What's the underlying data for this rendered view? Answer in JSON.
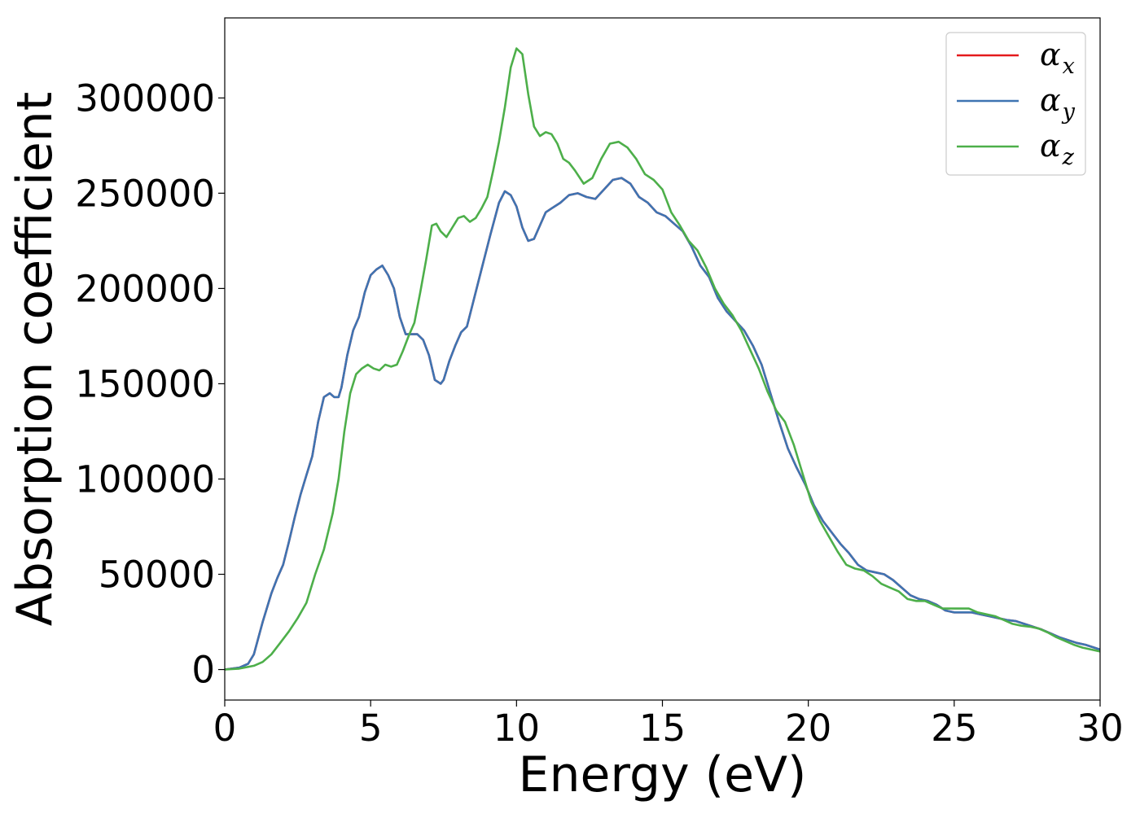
{
  "chart_data": {
    "type": "line",
    "title": "",
    "xlabel": "Energy (eV)",
    "ylabel": "Absorption coefficient",
    "xlim": [
      0,
      30
    ],
    "ylim": [
      -16000,
      342000
    ],
    "xticks": [
      0,
      5,
      10,
      15,
      20,
      25,
      30
    ],
    "yticks": [
      0,
      50000,
      100000,
      150000,
      200000,
      250000,
      300000
    ],
    "grid": false,
    "legend_position": "top-right",
    "series": [
      {
        "name": "x",
        "color": "#e41a1c",
        "x": [
          0,
          0.5,
          0.8,
          1.0,
          1.3,
          1.6,
          1.8,
          2.0,
          2.2,
          2.4,
          2.6,
          2.8,
          3.0,
          3.2,
          3.4,
          3.6,
          3.75,
          3.9,
          4.0,
          4.2,
          4.4,
          4.6,
          4.8,
          5.0,
          5.2,
          5.4,
          5.6,
          5.8,
          6.0,
          6.2,
          6.4,
          6.6,
          6.8,
          7.0,
          7.2,
          7.4,
          7.5,
          7.7,
          7.9,
          8.1,
          8.3,
          8.5,
          8.8,
          9.1,
          9.4,
          9.6,
          9.8,
          10.0,
          10.2,
          10.4,
          10.6,
          10.8,
          11.0,
          11.2,
          11.5,
          11.8,
          12.1,
          12.4,
          12.7,
          13.0,
          13.3,
          13.6,
          13.9,
          14.2,
          14.5,
          14.8,
          15.1,
          15.4,
          15.7,
          16.0,
          16.3,
          16.6,
          16.9,
          17.2,
          17.5,
          17.8,
          18.1,
          18.4,
          18.7,
          19.0,
          19.3,
          19.6,
          19.9,
          20.2,
          20.5,
          20.8,
          21.1,
          21.4,
          21.7,
          22.0,
          22.3,
          22.6,
          22.9,
          23.2,
          23.5,
          23.8,
          24.1,
          24.4,
          24.7,
          25.0,
          25.3,
          25.6,
          25.9,
          26.2,
          26.5,
          26.8,
          27.1,
          27.4,
          27.7,
          28.0,
          28.3,
          28.6,
          28.9,
          29.2,
          29.5,
          29.8,
          30.0
        ],
        "y": [
          0,
          1000,
          3000,
          8000,
          25000,
          40000,
          48000,
          55000,
          67000,
          80000,
          92000,
          102000,
          112000,
          130000,
          143000,
          145000,
          143000,
          143000,
          148000,
          165000,
          178000,
          185000,
          198000,
          207000,
          210000,
          212000,
          207000,
          200000,
          185000,
          176000,
          176000,
          176000,
          173000,
          165000,
          152000,
          150000,
          152000,
          162000,
          170000,
          177000,
          180000,
          192000,
          210000,
          228000,
          245000,
          251000,
          249000,
          243000,
          232000,
          225000,
          226000,
          233000,
          240000,
          242000,
          245000,
          249000,
          250000,
          248000,
          247000,
          252000,
          257000,
          258000,
          255000,
          248000,
          245000,
          240000,
          238000,
          234000,
          230000,
          222000,
          212000,
          206000,
          195000,
          188000,
          183000,
          178000,
          170000,
          160000,
          145000,
          130000,
          116000,
          106000,
          97000,
          86000,
          78000,
          72000,
          66000,
          61000,
          55000,
          52000,
          51000,
          50000,
          47000,
          43000,
          39000,
          37000,
          36000,
          34000,
          31000,
          30000,
          30000,
          30000,
          29000,
          28000,
          27000,
          26000,
          25500,
          24000,
          22500,
          21000,
          19000,
          17000,
          15500,
          14000,
          13000,
          11500,
          10500
        ]
      },
      {
        "name": "y",
        "color": "#3e74b2",
        "x": [
          0,
          0.5,
          0.8,
          1.0,
          1.3,
          1.6,
          1.8,
          2.0,
          2.2,
          2.4,
          2.6,
          2.8,
          3.0,
          3.2,
          3.4,
          3.6,
          3.75,
          3.9,
          4.0,
          4.2,
          4.4,
          4.6,
          4.8,
          5.0,
          5.2,
          5.4,
          5.6,
          5.8,
          6.0,
          6.2,
          6.4,
          6.6,
          6.8,
          7.0,
          7.2,
          7.4,
          7.5,
          7.7,
          7.9,
          8.1,
          8.3,
          8.5,
          8.8,
          9.1,
          9.4,
          9.6,
          9.8,
          10.0,
          10.2,
          10.4,
          10.6,
          10.8,
          11.0,
          11.2,
          11.5,
          11.8,
          12.1,
          12.4,
          12.7,
          13.0,
          13.3,
          13.6,
          13.9,
          14.2,
          14.5,
          14.8,
          15.1,
          15.4,
          15.7,
          16.0,
          16.3,
          16.6,
          16.9,
          17.2,
          17.5,
          17.8,
          18.1,
          18.4,
          18.7,
          19.0,
          19.3,
          19.6,
          19.9,
          20.2,
          20.5,
          20.8,
          21.1,
          21.4,
          21.7,
          22.0,
          22.3,
          22.6,
          22.9,
          23.2,
          23.5,
          23.8,
          24.1,
          24.4,
          24.7,
          25.0,
          25.3,
          25.6,
          25.9,
          26.2,
          26.5,
          26.8,
          27.1,
          27.4,
          27.7,
          28.0,
          28.3,
          28.6,
          28.9,
          29.2,
          29.5,
          29.8,
          30.0
        ],
        "y": [
          0,
          1000,
          3000,
          8000,
          25000,
          40000,
          48000,
          55000,
          67000,
          80000,
          92000,
          102000,
          112000,
          130000,
          143000,
          145000,
          143000,
          143000,
          148000,
          165000,
          178000,
          185000,
          198000,
          207000,
          210000,
          212000,
          207000,
          200000,
          185000,
          176000,
          176000,
          176000,
          173000,
          165000,
          152000,
          150000,
          152000,
          162000,
          170000,
          177000,
          180000,
          192000,
          210000,
          228000,
          245000,
          251000,
          249000,
          243000,
          232000,
          225000,
          226000,
          233000,
          240000,
          242000,
          245000,
          249000,
          250000,
          248000,
          247000,
          252000,
          257000,
          258000,
          255000,
          248000,
          245000,
          240000,
          238000,
          234000,
          230000,
          222000,
          212000,
          206000,
          195000,
          188000,
          183000,
          178000,
          170000,
          160000,
          145000,
          130000,
          116000,
          106000,
          97000,
          86000,
          78000,
          72000,
          66000,
          61000,
          55000,
          52000,
          51000,
          50000,
          47000,
          43000,
          39000,
          37000,
          36000,
          34000,
          31000,
          30000,
          30000,
          30000,
          29000,
          28000,
          27000,
          26000,
          25500,
          24000,
          22500,
          21000,
          19000,
          17000,
          15500,
          14000,
          13000,
          11500,
          10500
        ]
      },
      {
        "name": "z",
        "color": "#4daf4a",
        "x": [
          0,
          0.5,
          1.0,
          1.3,
          1.6,
          1.9,
          2.2,
          2.5,
          2.8,
          3.1,
          3.4,
          3.7,
          3.9,
          4.1,
          4.3,
          4.5,
          4.7,
          4.9,
          5.1,
          5.3,
          5.5,
          5.7,
          5.9,
          6.1,
          6.3,
          6.5,
          6.7,
          6.9,
          7.1,
          7.25,
          7.4,
          7.6,
          7.8,
          8.0,
          8.2,
          8.4,
          8.6,
          8.8,
          9.0,
          9.2,
          9.4,
          9.6,
          9.8,
          10.0,
          10.2,
          10.4,
          10.6,
          10.8,
          11.0,
          11.2,
          11.4,
          11.6,
          11.8,
          12.0,
          12.3,
          12.6,
          12.9,
          13.2,
          13.5,
          13.8,
          14.1,
          14.4,
          14.7,
          15.0,
          15.3,
          15.6,
          15.9,
          16.2,
          16.5,
          16.8,
          17.1,
          17.4,
          17.7,
          18.0,
          18.3,
          18.6,
          18.9,
          19.2,
          19.5,
          19.8,
          20.1,
          20.4,
          20.7,
          21.0,
          21.3,
          21.6,
          21.9,
          22.2,
          22.5,
          22.8,
          23.1,
          23.4,
          23.7,
          24.0,
          24.3,
          24.6,
          24.9,
          25.2,
          25.5,
          25.8,
          26.1,
          26.4,
          26.7,
          27.0,
          27.3,
          27.6,
          27.9,
          28.2,
          28.5,
          28.8,
          29.1,
          29.4,
          29.7,
          30.0
        ],
        "y": [
          0,
          500,
          2000,
          4000,
          8000,
          14000,
          20000,
          27000,
          35000,
          50000,
          63000,
          82000,
          100000,
          125000,
          145000,
          155000,
          158000,
          160000,
          158000,
          157000,
          160000,
          159000,
          160000,
          167000,
          175000,
          182000,
          198000,
          215000,
          233000,
          234000,
          230000,
          227000,
          232000,
          237000,
          238000,
          235000,
          237000,
          242000,
          248000,
          262000,
          277000,
          295000,
          316000,
          326000,
          323000,
          302000,
          285000,
          280000,
          282000,
          281000,
          276000,
          268000,
          266000,
          262000,
          255000,
          258000,
          268000,
          276000,
          277000,
          274000,
          268000,
          260000,
          257000,
          252000,
          240000,
          233000,
          225000,
          220000,
          211000,
          200000,
          192000,
          186000,
          178000,
          168000,
          158000,
          146000,
          136000,
          130000,
          118000,
          103000,
          88000,
          78000,
          70000,
          62000,
          55000,
          53000,
          52000,
          49000,
          45000,
          43000,
          41000,
          37000,
          36000,
          36000,
          34000,
          32000,
          32000,
          32000,
          32000,
          30000,
          29000,
          28000,
          26000,
          24000,
          23000,
          22500,
          21500,
          19500,
          17000,
          15000,
          13000,
          11500,
          10500,
          9500
        ]
      }
    ]
  }
}
